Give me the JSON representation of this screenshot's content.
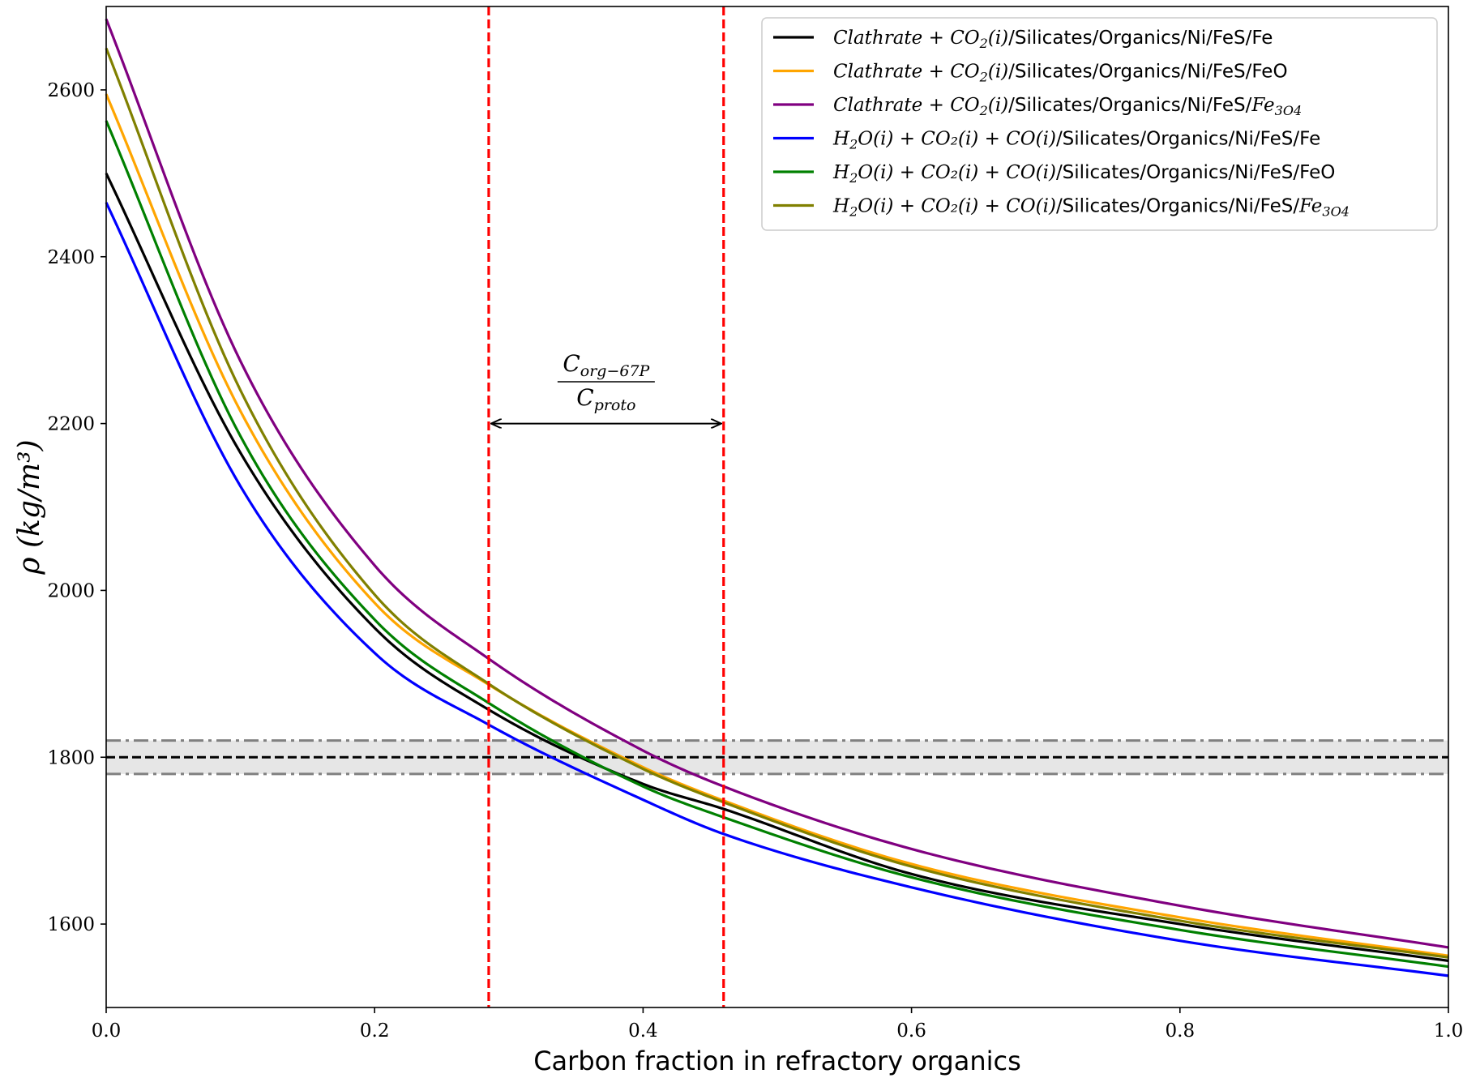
{
  "chart_data": {
    "type": "line",
    "xlabel": "Carbon fraction in refractory organics",
    "ylabel": "ρ (kg/m³)",
    "xlim": [
      0.0,
      1.0
    ],
    "ylim": [
      1500,
      2700
    ],
    "x_ticks": [
      0.0,
      0.2,
      0.4,
      0.6,
      0.8,
      1.0
    ],
    "x_tick_labels": [
      "0.0",
      "0.2",
      "0.4",
      "0.6",
      "0.8",
      "1.0"
    ],
    "y_ticks": [
      1600,
      1800,
      2000,
      2200,
      2400,
      2600
    ],
    "y_tick_labels": [
      "1600",
      "1800",
      "2000",
      "2200",
      "2400",
      "2600"
    ],
    "grid": false,
    "legend_position": "top-right",
    "series": [
      {
        "name": "Clathrate + CO₂(i)/Silicates/Organics/Ni/FeS/Fe",
        "color": "#000000",
        "x": [
          0.0,
          0.1,
          0.2,
          0.285,
          0.4,
          0.46,
          0.6,
          0.8,
          1.0
        ],
        "values": [
          2500,
          2165,
          1955,
          1857,
          1768,
          1738,
          1660,
          1600,
          1556
        ]
      },
      {
        "name": "Clathrate + CO₂(i)/Silicates/Organics/Ni/FeS/FeO",
        "color": "#FFA500",
        "x": [
          0.0,
          0.1,
          0.2,
          0.285,
          0.4,
          0.46,
          0.6,
          0.8,
          1.0
        ],
        "values": [
          2595,
          2215,
          1985,
          1887,
          1788,
          1748,
          1672,
          1608,
          1562
        ]
      },
      {
        "name": "Clathrate + CO₂(i)/Silicates/Organics/Ni/FeS/Fe₃O₄",
        "color": "#800080",
        "x": [
          0.0,
          0.1,
          0.2,
          0.285,
          0.4,
          0.46,
          0.6,
          0.8,
          1.0
        ],
        "values": [
          2685,
          2275,
          2030,
          1918,
          1808,
          1765,
          1690,
          1622,
          1572
        ]
      },
      {
        "name": "H₂O(i) + CO₂(i) + CO(i)/Silicates/Organics/Ni/FeS/Fe",
        "color": "#0000FF",
        "x": [
          0.0,
          0.1,
          0.2,
          0.285,
          0.4,
          0.46,
          0.6,
          0.8,
          1.0
        ],
        "values": [
          2465,
          2125,
          1925,
          1839,
          1749,
          1708,
          1644,
          1580,
          1538
        ]
      },
      {
        "name": "H₂O(i) + CO₂(i) + CO(i)/Silicates/Organics/Ni/FeS/FeO",
        "color": "#008000",
        "x": [
          0.0,
          0.1,
          0.2,
          0.285,
          0.4,
          0.46,
          0.6,
          0.8,
          1.0
        ],
        "values": [
          2563,
          2185,
          1965,
          1865,
          1765,
          1728,
          1656,
          1593,
          1549
        ]
      },
      {
        "name": "H₂O(i) + CO₂(i) + CO(i)/Silicates/Organics/Ni/FeS/Fe₃O₄",
        "color": "#808000",
        "x": [
          0.0,
          0.1,
          0.2,
          0.285,
          0.4,
          0.46,
          0.6,
          0.8,
          1.0
        ],
        "values": [
          2650,
          2240,
          1995,
          1888,
          1786,
          1746,
          1669,
          1604,
          1560
        ]
      }
    ],
    "reference_band": {
      "center": 1800,
      "lower": 1780,
      "upper": 1820,
      "center_color": "#000000",
      "bound_color": "#808080",
      "fill_color": "#e6e6e6"
    },
    "vertical_lines": {
      "x": [
        0.285,
        0.46
      ],
      "color": "#ff0000"
    },
    "annotation": {
      "numerator": "C",
      "numerator_sub": "org−67P",
      "denominator": "C",
      "denominator_sub": "proto",
      "arrow_y": 2200
    }
  },
  "legend": [
    {
      "italic": "Clathrate",
      "mid": " + CO",
      "sub": "2",
      "tail_italic": "(i)",
      "rest": "/Silicates/Organics/Ni/FeS/Fe",
      "end_italic": "",
      "end_sub": ""
    },
    {
      "italic": "Clathrate",
      "mid": " + CO",
      "sub": "2",
      "tail_italic": "(i)",
      "rest": "/Silicates/Organics/Ni/FeS/FeO",
      "end_italic": "",
      "end_sub": ""
    },
    {
      "italic": "Clathrate",
      "mid": " + CO",
      "sub": "2",
      "tail_italic": "(i)",
      "rest": "/Silicates/Organics/Ni/FeS/",
      "end_italic": "Fe",
      "end_sub": "3O4"
    },
    {
      "italic": "H",
      "mid": "",
      "sub": "2",
      "tail_italic": "O(i) + CO₂(i) + CO(i)",
      "rest": "/Silicates/Organics/Ni/FeS/Fe",
      "end_italic": "",
      "end_sub": ""
    },
    {
      "italic": "H",
      "mid": "",
      "sub": "2",
      "tail_italic": "O(i) + CO₂(i) + CO(i)",
      "rest": "/Silicates/Organics/Ni/FeS/FeO",
      "end_italic": "",
      "end_sub": ""
    },
    {
      "italic": "H",
      "mid": "",
      "sub": "2",
      "tail_italic": "O(i) + CO₂(i) + CO(i)",
      "rest": "/Silicates/Organics/Ni/FeS/",
      "end_italic": "Fe",
      "end_sub": "3O4"
    }
  ]
}
